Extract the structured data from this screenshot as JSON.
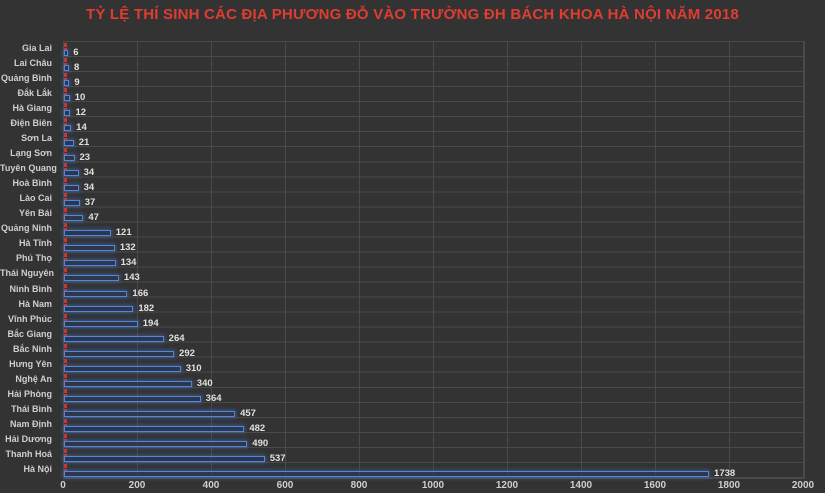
{
  "title": "TỶ LỆ THÍ SINH CÁC ĐỊA PHƯƠNG ĐỖ VÀO TRƯỜNG ĐH BÁCH KHOA HÀ NỘI NĂM 2018",
  "colors": {
    "background": "#333333",
    "title": "#e03c31",
    "bar_border": "#5585d6",
    "bar_glow": "#4472c4",
    "marker_red": "#c9362e",
    "gridline": "#4a4a4a",
    "axis_label": "#cfcfcf",
    "value_label": "#e0e0e0"
  },
  "chart_data": {
    "type": "bar",
    "orientation": "horizontal",
    "title": "TỶ LỆ THÍ SINH CÁC ĐỊA PHƯƠNG ĐỖ VÀO TRƯỜNG ĐH BÁCH KHOA HÀ NỘI NĂM 2018",
    "categories": [
      "Gia Lai",
      "Lai Châu",
      "Quảng Bình",
      "Đắk Lắk",
      "Hà Giang",
      "Điện Biên",
      "Sơn La",
      "Lạng Sơn",
      "Tuyên Quang",
      "Hoà Bình",
      "Lào Cai",
      "Yên Bái",
      "Quảng Ninh",
      "Hà Tĩnh",
      "Phú Thọ",
      "Thái Nguyên",
      "Ninh Bình",
      "Hà Nam",
      "Vĩnh Phúc",
      "Bắc Giang",
      "Bắc Ninh",
      "Hưng Yên",
      "Nghệ An",
      "Hải Phòng",
      "Thái Bình",
      "Nam Định",
      "Hải Dương",
      "Thanh Hoá",
      "Hà Nội"
    ],
    "values": [
      6,
      8,
      9,
      10,
      12,
      14,
      21,
      23,
      34,
      34,
      37,
      47,
      121,
      132,
      134,
      143,
      166,
      182,
      194,
      264,
      292,
      310,
      340,
      364,
      457,
      482,
      490,
      537,
      1738
    ],
    "marker_series_note": "small red dashed tick at zero baseline of every category row",
    "xlabel": "",
    "ylabel": "",
    "xlim": [
      0,
      2000
    ],
    "x_ticks": [
      0,
      200,
      400,
      600,
      800,
      1000,
      1200,
      1400,
      1600,
      1800,
      2000
    ],
    "grid": true,
    "legend": false
  }
}
